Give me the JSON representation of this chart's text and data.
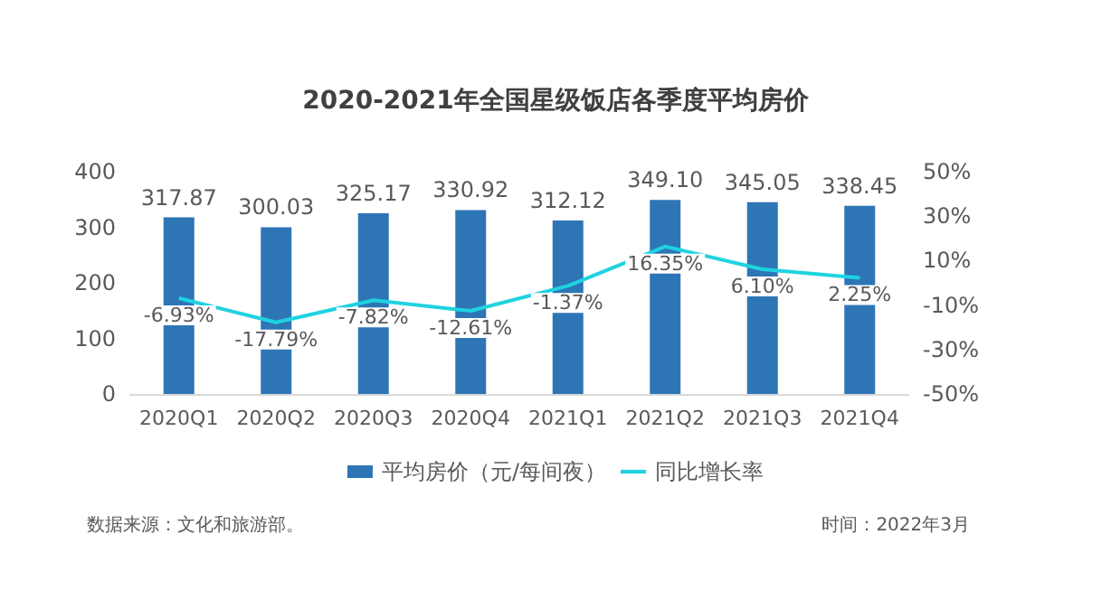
{
  "chart_data": {
    "type": "bar",
    "title": "2020-2021年全国星级饭店各季度平均房价",
    "categories": [
      "2020Q1",
      "2020Q2",
      "2020Q3",
      "2020Q4",
      "2021Q1",
      "2021Q2",
      "2021Q3",
      "2021Q4"
    ],
    "series": [
      {
        "name": "平均房价（元/每间夜）",
        "color": "#2e75b6",
        "values": [
          317.87,
          300.03,
          325.17,
          330.92,
          312.12,
          349.1,
          345.05,
          338.45
        ],
        "value_labels": [
          "317.87",
          "300.03",
          "325.17",
          "330.92",
          "312.12",
          "349.10",
          "345.05",
          "338.45"
        ]
      },
      {
        "name": "同比增长率",
        "type": "line",
        "axis": "y2",
        "color": "#1fd3e0",
        "values": [
          -6.93,
          -17.79,
          -7.82,
          -12.61,
          -1.37,
          16.35,
          6.1,
          2.25
        ],
        "value_labels": [
          "-6.93%",
          "-17.79%",
          "-7.82%",
          "-12.61%",
          "-1.37%",
          "16.35%",
          "6.10%",
          "2.25%"
        ]
      }
    ],
    "ylim": [
      0,
      400
    ],
    "yticks": [
      0,
      100,
      200,
      300,
      400
    ],
    "y2lim": [
      -50,
      50
    ],
    "y2ticks": [
      {
        "value": -50,
        "label": "-50%"
      },
      {
        "value": -30,
        "label": "-30%"
      },
      {
        "value": -10,
        "label": "-10%"
      },
      {
        "value": 10,
        "label": "10%"
      },
      {
        "value": 30,
        "label": "30%"
      },
      {
        "value": 50,
        "label": "50%"
      }
    ],
    "grid": false,
    "legend": "bottom",
    "marker": "none",
    "annotations": [
      "数据来源：文化和旅游部。",
      "时间：2022年3月"
    ]
  }
}
